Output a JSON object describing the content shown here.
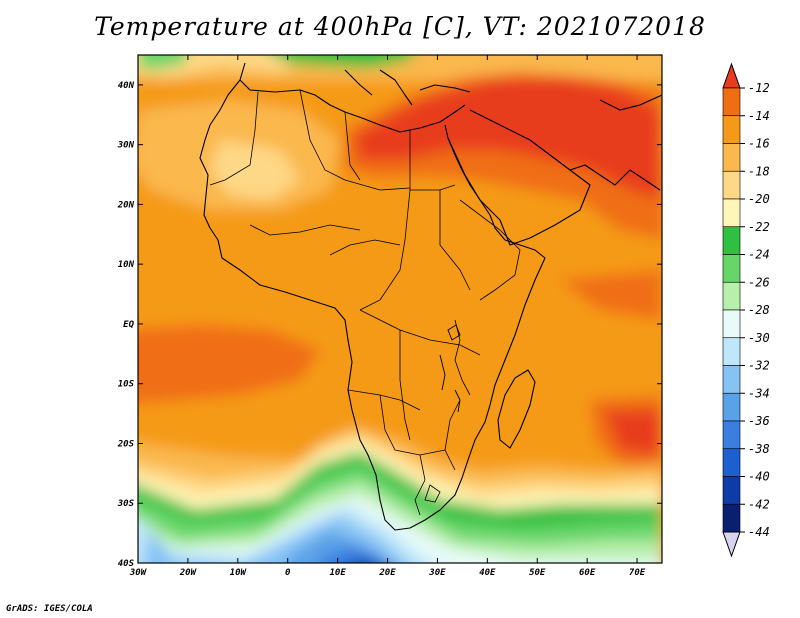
{
  "title": "Temperature at 400hPa [C], VT: 2021072018",
  "credit": "GrADS: IGES/COLA",
  "map": {
    "lon_range": [
      -30,
      75
    ],
    "lat_range": [
      -40,
      45
    ],
    "lat_ticks": [
      "40N",
      "30N",
      "20N",
      "10N",
      "EQ",
      "10S",
      "20S",
      "30S",
      "40S"
    ],
    "lon_ticks": [
      "30W",
      "20W",
      "10W",
      "0",
      "10E",
      "20E",
      "30E",
      "40E",
      "50E",
      "60E",
      "70E"
    ],
    "fields": {
      "core_max": "-12",
      "sahel": "-15",
      "equatorial": "-15",
      "south_east_indian": "-14",
      "southern_front": "-23",
      "southern_cold": "-32",
      "coldest": "-42"
    }
  },
  "colorbar": {
    "labels": [
      "-12",
      "-14",
      "-16",
      "-18",
      "-20",
      "-22",
      "-24",
      "-26",
      "-28",
      "-30",
      "-32",
      "-34",
      "-36",
      "-38",
      "-40",
      "-42",
      "-44"
    ],
    "colors": [
      "#e83c1e",
      "#f06e12",
      "#f59a18",
      "#fab84e",
      "#fed886",
      "#fef5b8",
      "#2fbf41",
      "#67d669",
      "#b8efab",
      "#e8fbf9",
      "#bfe6f9",
      "#86c3f4",
      "#5aa2e8",
      "#3a7ee0",
      "#1e5fd0",
      "#0d3ba8",
      "#0a1f6f",
      "#d8d4f0"
    ]
  }
}
